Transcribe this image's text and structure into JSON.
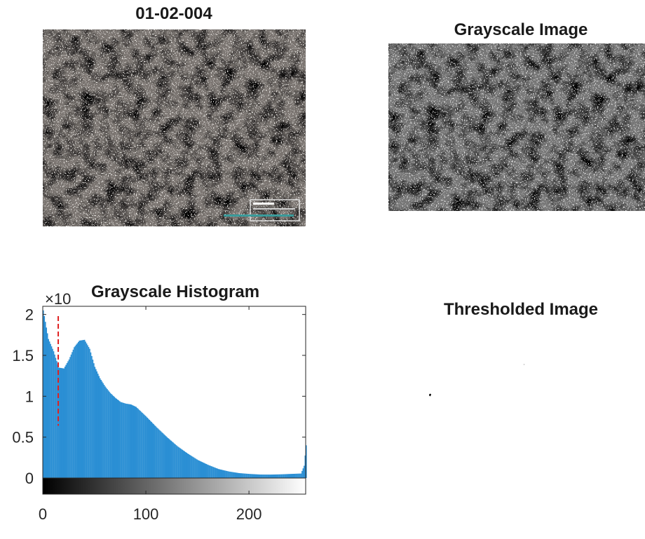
{
  "panels": {
    "original_title": "01-02-004",
    "grayscale_title": "Grayscale Image",
    "threshold_title": "Thresholded Image",
    "histogram_title": "Grayscale Histogram"
  },
  "chart_data": {
    "type": "bar",
    "title": "Grayscale Histogram",
    "xlabel": "",
    "ylabel": "",
    "y_exponent_label": "×10",
    "xlim": [
      0,
      255
    ],
    "ylim": [
      0,
      21000
    ],
    "xticks": [
      0,
      100,
      200
    ],
    "yticks": [
      0,
      5000,
      10000,
      15000,
      20000
    ],
    "ytick_labels": [
      "0",
      "0.5",
      "1",
      "1.5",
      "2"
    ],
    "bar_color": "#2b8fd4",
    "threshold": {
      "x": 15,
      "color": "#e02020",
      "style": "dashed"
    },
    "x": [
      0,
      5,
      10,
      15,
      20,
      25,
      30,
      35,
      40,
      45,
      50,
      55,
      60,
      65,
      70,
      75,
      80,
      85,
      90,
      95,
      100,
      110,
      120,
      130,
      140,
      150,
      160,
      170,
      180,
      190,
      200,
      210,
      220,
      230,
      240,
      250,
      253,
      255
    ],
    "values": [
      20500,
      17000,
      15500,
      13500,
      13400,
      14500,
      16000,
      16800,
      16900,
      15800,
      13600,
      12200,
      11200,
      10400,
      9800,
      9300,
      9100,
      9000,
      8700,
      8100,
      7500,
      6200,
      5000,
      3900,
      3000,
      2200,
      1600,
      1100,
      800,
      600,
      500,
      430,
      420,
      450,
      500,
      550,
      1500,
      4000
    ]
  },
  "colorbar": {
    "from": "#000000",
    "to": "#ffffff"
  }
}
